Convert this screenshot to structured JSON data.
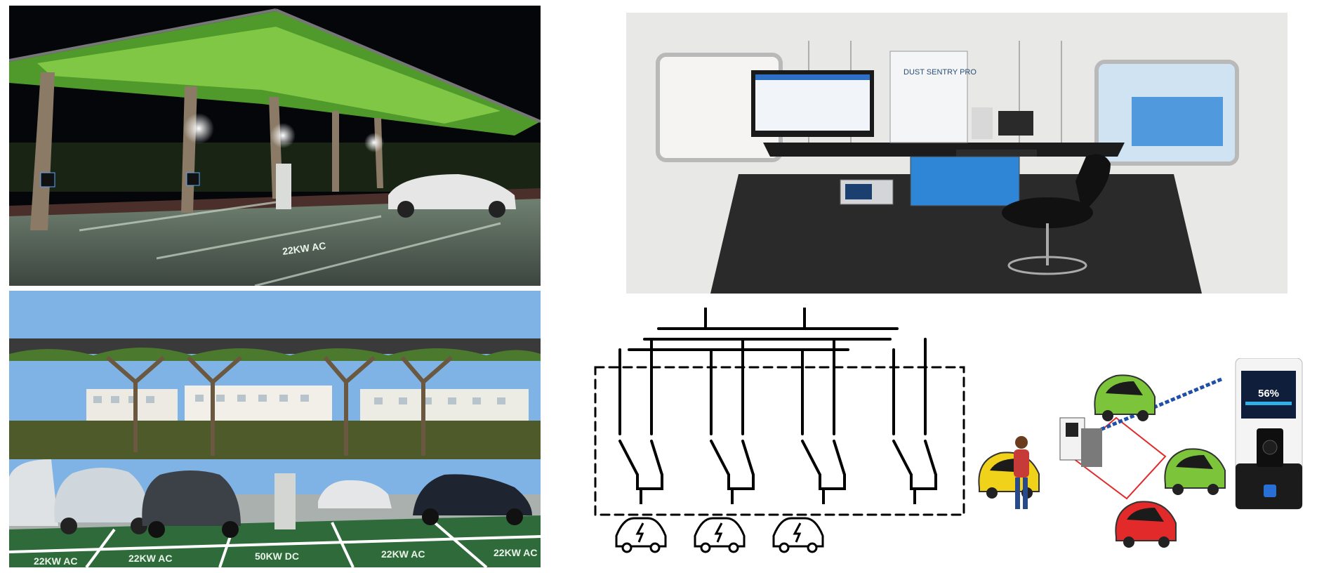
{
  "night_photo": {
    "bay_labels": [
      "22KW AC"
    ],
    "colors": {
      "sky": "#05060a",
      "canopy": "#6fbf3a",
      "ground": "#5a6a5c"
    }
  },
  "day_photo": {
    "bay_labels": [
      "22KW AC",
      "22KW AC",
      "50KW DC",
      "22KW AC",
      "22KW AC"
    ],
    "colors": {
      "sky": "#7fb3e6",
      "canopy": "#4b7a2e",
      "bay_paint": "#2f6b3a"
    }
  },
  "van_interior": {
    "instrument_box_label": "DUST SENTRY PRO",
    "colors": {
      "walls": "#e8e8e6",
      "desk": "#1c1c1c",
      "blue_cabinet": "#2f86d6"
    }
  },
  "schematic": {
    "switch_count": 4,
    "car_icon": "ev-car-icon",
    "car_count": 3
  },
  "illustration": {
    "charger_display_value": "56%",
    "car_colors": [
      "#f1d21a",
      "#7cc43a",
      "#7cc43a",
      "#e22a2a"
    ]
  }
}
